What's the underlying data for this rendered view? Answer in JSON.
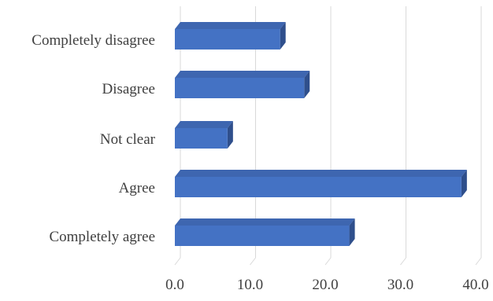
{
  "chart_data": {
    "type": "bar",
    "orientation": "horizontal",
    "style": "3d",
    "categories": [
      "Completely disagree",
      "Disagree",
      "Not clear",
      "Agree",
      "Completely agree"
    ],
    "values": [
      14.0,
      17.2,
      7.0,
      38.1,
      23.2
    ],
    "x_ticks": [
      "0.0",
      "10.0",
      "20.0",
      "30.0",
      "40.0"
    ],
    "xlim": [
      0,
      40
    ],
    "grid": "vertical",
    "legend": "none",
    "colors": {
      "bar_front": "#4472C4",
      "bar_top": "#3E66B0",
      "bar_side": "#2F4F8C",
      "grid": "#D9D9D9",
      "text": "#404040"
    }
  }
}
